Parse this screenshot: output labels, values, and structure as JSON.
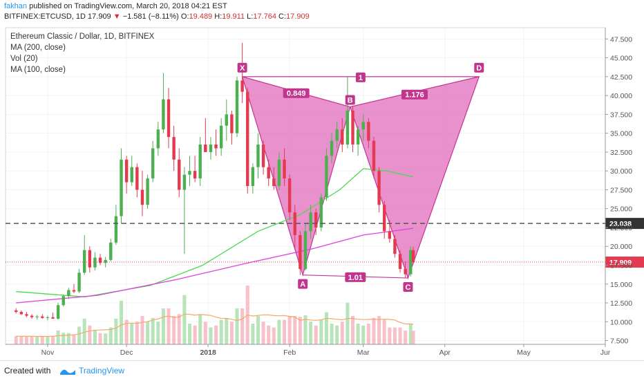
{
  "header": {
    "publisher": "fakhan",
    "published_text": "published on TradingView.com, March 20, 2018 04:21 EST",
    "symbol": "BITFINEX:ETCUSD, 1D",
    "last": "17.909",
    "change_arrow": "▼",
    "change": "−1.581 (−8.11%)",
    "o_label": "O:",
    "o": "19.489",
    "h_label": "H:",
    "h": "19.911",
    "l_label": "L:",
    "l": "17.764",
    "c_label": "C:",
    "c": "17.909"
  },
  "legend": {
    "title": "Ethereum Classic / Dollar, 1D, BITFINEX",
    "ma200": "MA (200, close)",
    "vol": "Vol (20)",
    "ma100": "MA (100, close)"
  },
  "footer": {
    "created_with": "Created with",
    "brand": "TradingView"
  },
  "colors": {
    "up": "#4caf50",
    "down": "#e53950",
    "pattern_fill": "#e066b8",
    "pattern_label_bg": "#c2358f",
    "ma100": "#4cd94c",
    "ma200": "#e040e0",
    "vol_ma": "#f5a76a",
    "price_line": "#e53950"
  },
  "chart_data": {
    "type": "candlestick",
    "y_ticks": [
      "7.500",
      "10.000",
      "12.500",
      "15.000",
      "17.500",
      "20.000",
      "22.500",
      "25.000",
      "27.500",
      "30.000",
      "32.500",
      "35.000",
      "37.500",
      "40.000",
      "42.500",
      "45.000",
      "47.500"
    ],
    "x_ticks": [
      "Nov",
      "Dec",
      "2018",
      "Feb",
      "Mar",
      "Apr",
      "May",
      "Jur"
    ],
    "ylim": [
      7.0,
      49.0
    ],
    "last_price_label": "17.909",
    "horizontal_line_label": "23.038",
    "horizontal_line": 23.038,
    "pattern": {
      "points": [
        {
          "name": "X",
          "x": "2018-01-14",
          "y": 42.5
        },
        {
          "name": "A",
          "x": "2018-02-06",
          "y": 16.2
        },
        {
          "name": "B",
          "x": "2018-02-24",
          "y": 38.5
        },
        {
          "name": "C",
          "x": "2018-03-18",
          "y": 15.8
        },
        {
          "name": "D",
          "x": "2018-04-14",
          "y": 42.5
        }
      ],
      "ratios": [
        {
          "label": "0.849"
        },
        {
          "label": "1.176"
        },
        {
          "label": "1.01"
        },
        {
          "label": "1"
        }
      ]
    },
    "ma100": [
      {
        "x": "2017-10-20",
        "y": 14.0
      },
      {
        "x": "2017-11-15",
        "y": 13.3
      },
      {
        "x": "2017-12-10",
        "y": 14.8
      },
      {
        "x": "2017-12-30",
        "y": 17.5
      },
      {
        "x": "2018-01-20",
        "y": 22.0
      },
      {
        "x": "2018-02-05",
        "y": 24.2
      },
      {
        "x": "2018-02-20",
        "y": 27.5
      },
      {
        "x": "2018-03-01",
        "y": 30.3
      },
      {
        "x": "2018-03-10",
        "y": 30.0
      },
      {
        "x": "2018-03-20",
        "y": 29.2
      }
    ],
    "ma200": [
      {
        "x": "2017-10-20",
        "y": 12.5
      },
      {
        "x": "2017-11-20",
        "y": 13.5
      },
      {
        "x": "2017-12-20",
        "y": 15.6
      },
      {
        "x": "2018-01-15",
        "y": 17.7
      },
      {
        "x": "2018-02-10",
        "y": 19.7
      },
      {
        "x": "2018-03-01",
        "y": 21.5
      },
      {
        "x": "2018-03-20",
        "y": 22.4
      }
    ],
    "candles": [
      {
        "d": "2017-10-20",
        "o": 11.5,
        "h": 11.8,
        "l": 11.1,
        "c": 11.3
      },
      {
        "d": "2017-10-22",
        "o": 11.3,
        "h": 11.5,
        "l": 10.9,
        "c": 11.0
      },
      {
        "d": "2017-10-24",
        "o": 11.0,
        "h": 11.3,
        "l": 10.6,
        "c": 10.8
      },
      {
        "d": "2017-10-26",
        "o": 10.8,
        "h": 11.0,
        "l": 10.4,
        "c": 10.6
      },
      {
        "d": "2017-10-28",
        "o": 10.6,
        "h": 10.9,
        "l": 10.3,
        "c": 10.7
      },
      {
        "d": "2017-10-30",
        "o": 10.7,
        "h": 11.0,
        "l": 10.4,
        "c": 10.5
      },
      {
        "d": "2017-11-01",
        "o": 10.5,
        "h": 10.8,
        "l": 10.2,
        "c": 10.6
      },
      {
        "d": "2017-11-03",
        "o": 10.6,
        "h": 11.2,
        "l": 10.4,
        "c": 10.4
      },
      {
        "d": "2017-11-05",
        "o": 10.4,
        "h": 12.5,
        "l": 10.3,
        "c": 12.2
      },
      {
        "d": "2017-11-07",
        "o": 12.2,
        "h": 13.6,
        "l": 12.0,
        "c": 13.4
      },
      {
        "d": "2017-11-09",
        "o": 13.4,
        "h": 14.5,
        "l": 13.0,
        "c": 14.2
      },
      {
        "d": "2017-11-11",
        "o": 14.2,
        "h": 15.0,
        "l": 13.8,
        "c": 14.0
      },
      {
        "d": "2017-11-13",
        "o": 14.0,
        "h": 17.0,
        "l": 13.8,
        "c": 16.5
      },
      {
        "d": "2017-11-15",
        "o": 16.5,
        "h": 21.5,
        "l": 16.2,
        "c": 19.5
      },
      {
        "d": "2017-11-17",
        "o": 19.5,
        "h": 20.0,
        "l": 16.5,
        "c": 17.2
      },
      {
        "d": "2017-11-19",
        "o": 17.2,
        "h": 19.2,
        "l": 16.8,
        "c": 18.5
      },
      {
        "d": "2017-11-21",
        "o": 18.5,
        "h": 19.0,
        "l": 17.5,
        "c": 17.8
      },
      {
        "d": "2017-11-23",
        "o": 17.8,
        "h": 18.6,
        "l": 17.2,
        "c": 18.2
      },
      {
        "d": "2017-11-25",
        "o": 18.2,
        "h": 21.0,
        "l": 18.0,
        "c": 20.5
      },
      {
        "d": "2017-11-27",
        "o": 20.5,
        "h": 25.5,
        "l": 20.2,
        "c": 24.0
      },
      {
        "d": "2017-11-29",
        "o": 24.0,
        "h": 33.0,
        "l": 23.0,
        "c": 31.5
      },
      {
        "d": "2017-12-01",
        "o": 31.5,
        "h": 32.0,
        "l": 27.0,
        "c": 28.5
      },
      {
        "d": "2017-12-03",
        "o": 28.5,
        "h": 32.0,
        "l": 28.0,
        "c": 30.5
      },
      {
        "d": "2017-12-05",
        "o": 30.5,
        "h": 31.0,
        "l": 26.5,
        "c": 27.5
      },
      {
        "d": "2017-12-07",
        "o": 27.5,
        "h": 30.0,
        "l": 24.0,
        "c": 25.5
      },
      {
        "d": "2017-12-09",
        "o": 25.5,
        "h": 29.5,
        "l": 25.0,
        "c": 29.0
      },
      {
        "d": "2017-12-11",
        "o": 29.0,
        "h": 34.0,
        "l": 28.5,
        "c": 33.0
      },
      {
        "d": "2017-12-13",
        "o": 33.0,
        "h": 36.5,
        "l": 32.0,
        "c": 35.5
      },
      {
        "d": "2017-12-15",
        "o": 35.5,
        "h": 43.0,
        "l": 35.0,
        "c": 39.5
      },
      {
        "d": "2017-12-17",
        "o": 39.5,
        "h": 41.0,
        "l": 33.0,
        "c": 34.5
      },
      {
        "d": "2017-12-19",
        "o": 34.5,
        "h": 36.0,
        "l": 30.0,
        "c": 31.5
      },
      {
        "d": "2017-12-21",
        "o": 31.5,
        "h": 33.0,
        "l": 26.5,
        "c": 27.5
      },
      {
        "d": "2017-12-23",
        "o": 27.5,
        "h": 30.5,
        "l": 19.0,
        "c": 29.5
      },
      {
        "d": "2017-12-25",
        "o": 29.5,
        "h": 32.0,
        "l": 28.0,
        "c": 30.0
      },
      {
        "d": "2017-12-27",
        "o": 30.0,
        "h": 32.0,
        "l": 28.5,
        "c": 29.0
      },
      {
        "d": "2017-12-29",
        "o": 29.0,
        "h": 34.5,
        "l": 28.0,
        "c": 33.5
      },
      {
        "d": "2017-12-31",
        "o": 33.5,
        "h": 37.0,
        "l": 32.5,
        "c": 32.5
      },
      {
        "d": "2018-01-02",
        "o": 32.5,
        "h": 34.5,
        "l": 31.5,
        "c": 33.5
      },
      {
        "d": "2018-01-04",
        "o": 33.5,
        "h": 35.5,
        "l": 32.0,
        "c": 33.0
      },
      {
        "d": "2018-01-06",
        "o": 33.0,
        "h": 37.0,
        "l": 32.0,
        "c": 36.0
      },
      {
        "d": "2018-01-08",
        "o": 36.0,
        "h": 39.5,
        "l": 34.0,
        "c": 37.5
      },
      {
        "d": "2018-01-10",
        "o": 37.5,
        "h": 38.0,
        "l": 33.5,
        "c": 35.0
      },
      {
        "d": "2018-01-12",
        "o": 35.0,
        "h": 42.5,
        "l": 34.5,
        "c": 42.0
      },
      {
        "d": "2018-01-14",
        "o": 42.0,
        "h": 47.0,
        "l": 39.0,
        "c": 40.5
      },
      {
        "d": "2018-01-16",
        "o": 40.5,
        "h": 41.0,
        "l": 27.0,
        "c": 28.0
      },
      {
        "d": "2018-01-18",
        "o": 28.0,
        "h": 31.0,
        "l": 27.0,
        "c": 30.5
      },
      {
        "d": "2018-01-20",
        "o": 30.5,
        "h": 35.0,
        "l": 29.0,
        "c": 33.5
      },
      {
        "d": "2018-01-22",
        "o": 33.5,
        "h": 34.0,
        "l": 29.5,
        "c": 30.5
      },
      {
        "d": "2018-01-24",
        "o": 30.5,
        "h": 31.5,
        "l": 28.0,
        "c": 29.0
      },
      {
        "d": "2018-01-26",
        "o": 29.0,
        "h": 30.5,
        "l": 27.5,
        "c": 28.0
      },
      {
        "d": "2018-01-28",
        "o": 28.0,
        "h": 32.5,
        "l": 27.5,
        "c": 31.5
      },
      {
        "d": "2018-01-30",
        "o": 31.5,
        "h": 33.0,
        "l": 28.0,
        "c": 29.0
      },
      {
        "d": "2018-02-01",
        "o": 29.0,
        "h": 29.5,
        "l": 23.5,
        "c": 24.5
      },
      {
        "d": "2018-02-03",
        "o": 24.5,
        "h": 25.5,
        "l": 19.5,
        "c": 21.5
      },
      {
        "d": "2018-02-05",
        "o": 21.5,
        "h": 22.0,
        "l": 16.2,
        "c": 17.0
      },
      {
        "d": "2018-02-07",
        "o": 17.0,
        "h": 23.0,
        "l": 16.8,
        "c": 22.0
      },
      {
        "d": "2018-02-09",
        "o": 22.0,
        "h": 25.5,
        "l": 21.0,
        "c": 24.5
      },
      {
        "d": "2018-02-11",
        "o": 24.5,
        "h": 25.0,
        "l": 21.5,
        "c": 22.5
      },
      {
        "d": "2018-02-13",
        "o": 22.5,
        "h": 27.0,
        "l": 22.0,
        "c": 26.5
      },
      {
        "d": "2018-02-15",
        "o": 26.5,
        "h": 33.0,
        "l": 26.0,
        "c": 32.0
      },
      {
        "d": "2018-02-17",
        "o": 32.0,
        "h": 35.0,
        "l": 31.0,
        "c": 34.0
      },
      {
        "d": "2018-02-19",
        "o": 34.0,
        "h": 36.5,
        "l": 33.0,
        "c": 35.5
      },
      {
        "d": "2018-02-21",
        "o": 35.5,
        "h": 37.0,
        "l": 32.5,
        "c": 33.5
      },
      {
        "d": "2018-02-23",
        "o": 33.5,
        "h": 42.5,
        "l": 33.0,
        "c": 38.0
      },
      {
        "d": "2018-02-25",
        "o": 38.0,
        "h": 38.5,
        "l": 32.5,
        "c": 33.5
      },
      {
        "d": "2018-02-27",
        "o": 33.5,
        "h": 36.0,
        "l": 32.0,
        "c": 35.5
      },
      {
        "d": "2018-03-01",
        "o": 35.5,
        "h": 37.5,
        "l": 34.0,
        "c": 36.5
      },
      {
        "d": "2018-03-03",
        "o": 36.5,
        "h": 37.0,
        "l": 33.0,
        "c": 34.0
      },
      {
        "d": "2018-03-05",
        "o": 34.0,
        "h": 34.5,
        "l": 29.0,
        "c": 30.0
      },
      {
        "d": "2018-03-07",
        "o": 30.0,
        "h": 30.5,
        "l": 24.5,
        "c": 25.5
      },
      {
        "d": "2018-03-09",
        "o": 25.5,
        "h": 26.0,
        "l": 21.0,
        "c": 22.0
      },
      {
        "d": "2018-03-11",
        "o": 22.0,
        "h": 23.5,
        "l": 20.5,
        "c": 21.0
      },
      {
        "d": "2018-03-13",
        "o": 21.0,
        "h": 21.5,
        "l": 18.5,
        "c": 19.0
      },
      {
        "d": "2018-03-15",
        "o": 19.0,
        "h": 19.5,
        "l": 16.5,
        "c": 17.0
      },
      {
        "d": "2018-03-17",
        "o": 17.0,
        "h": 18.0,
        "l": 15.8,
        "c": 16.3
      },
      {
        "d": "2018-03-19",
        "o": 16.3,
        "h": 20.0,
        "l": 16.0,
        "c": 19.5
      },
      {
        "d": "2018-03-20",
        "o": 19.489,
        "h": 19.911,
        "l": 17.764,
        "c": 17.909
      }
    ]
  }
}
